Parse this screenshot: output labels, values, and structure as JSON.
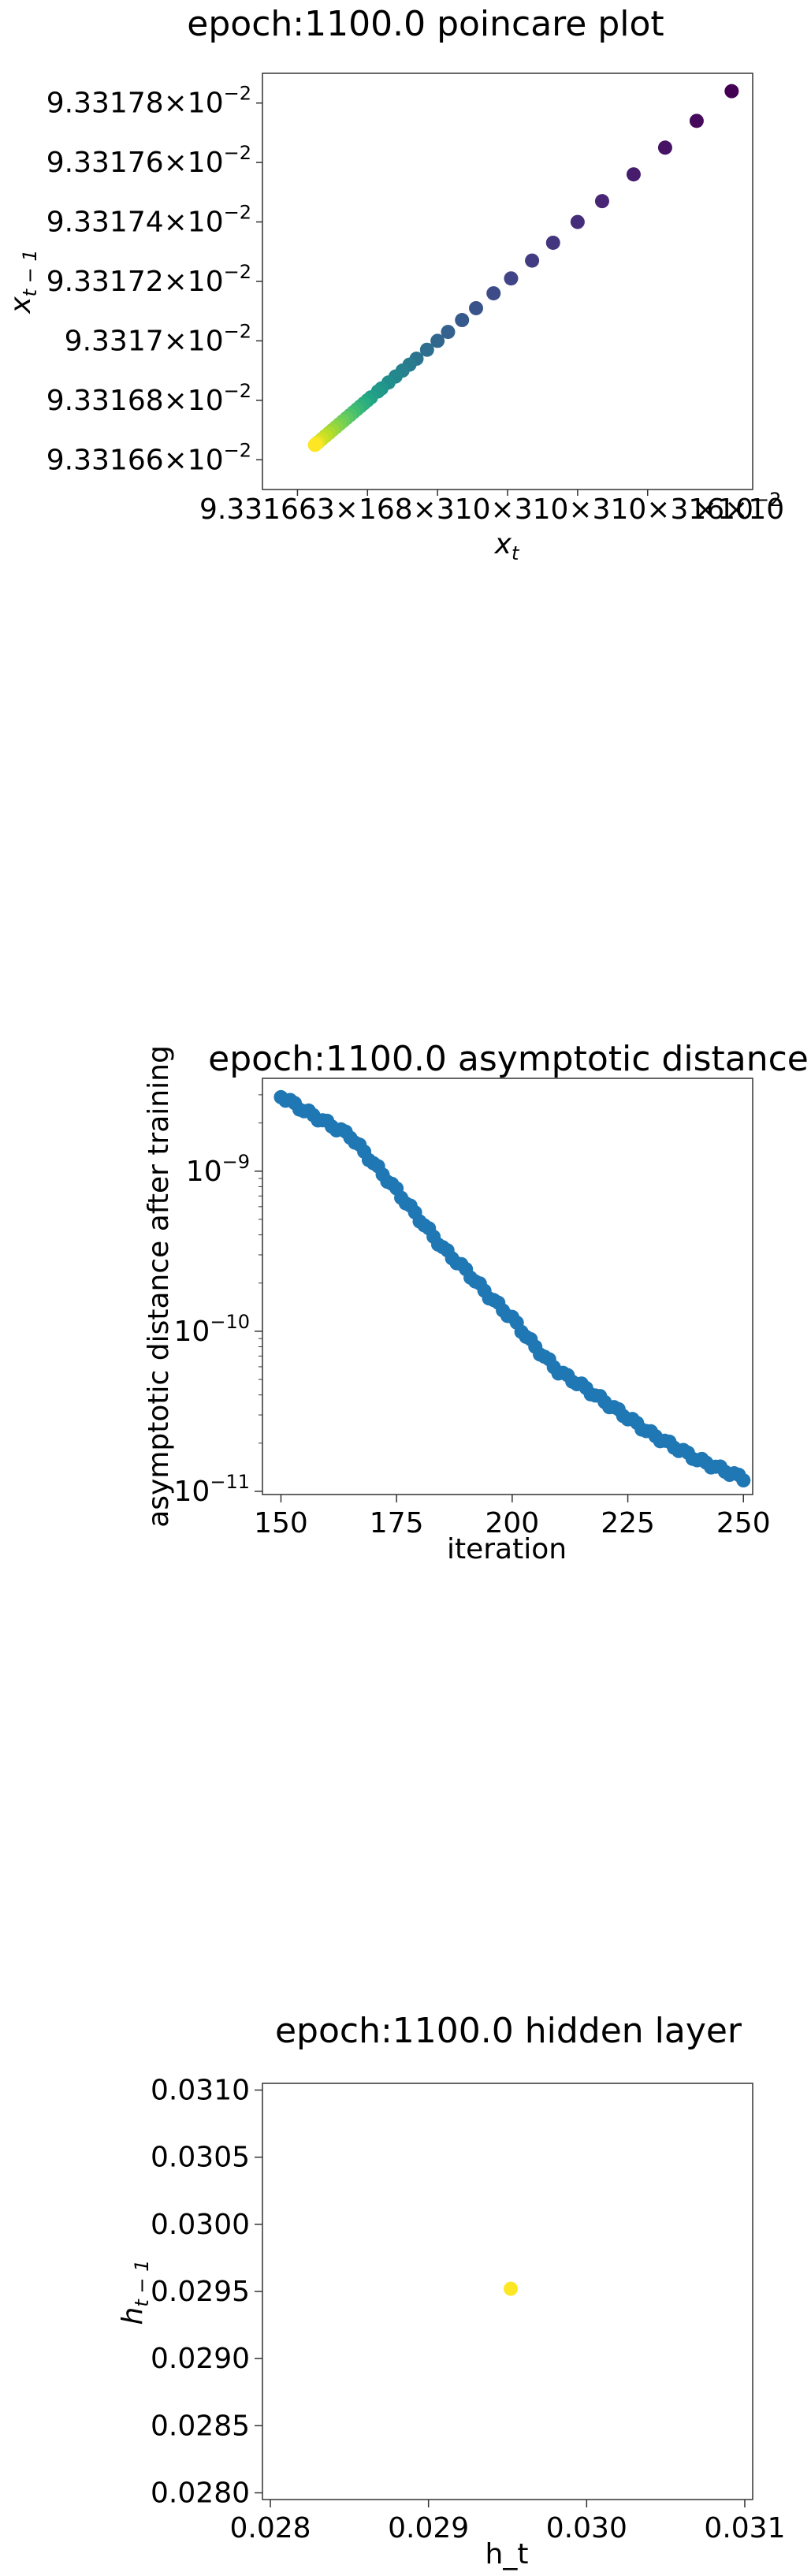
{
  "chart_data": [
    {
      "type": "scatter",
      "title": "epoch:1100.0 poincare plot",
      "xlabel": "x",
      "xlabel_sub": "t",
      "ylabel": "x",
      "ylabel_sub": "t − 1",
      "colormap": "viridis",
      "xlim": [
        0.0933165,
        0.0933179
      ],
      "ylim": [
        0.0933165,
        0.0933179
      ],
      "x_ticks_text": "9.3316 3×10³¹°³² ×10³² ×10⁻²",
      "x_tick_labels": [
        {
          "m": "9.33166",
          "e": "−2",
          "v": 0.0933166
        },
        {
          "m": "9.33168",
          "e": "−2",
          "v": 0.0933168
        },
        {
          "m": "9.3317",
          "e": "−2",
          "v": 0.093317
        },
        {
          "m": "9.33172",
          "e": "−2",
          "v": 0.0933172
        },
        {
          "m": "9.33174",
          "e": "−2",
          "v": 0.0933174
        },
        {
          "m": "9.33176",
          "e": "−2",
          "v": 0.0933176
        }
      ],
      "y_tick_labels": [
        {
          "m": "9.33178",
          "e": "−2",
          "v": 0.0933178
        },
        {
          "m": "9.33176",
          "e": "−2",
          "v": 0.0933176
        },
        {
          "m": "9.33174",
          "e": "−2",
          "v": 0.0933174
        },
        {
          "m": "9.33172",
          "e": "−2",
          "v": 0.0933172
        },
        {
          "m": "9.3317",
          "e": "−2",
          "v": 0.093317
        },
        {
          "m": "9.33168",
          "e": "−2",
          "v": 0.0933168
        },
        {
          "m": "9.33166",
          "e": "−2",
          "v": 0.0933166
        }
      ],
      "x_visible_text": "9.331663×168×310×310×310×316×10",
      "x_last_label": {
        "m": "×10",
        "e": "−2"
      },
      "points_x": [
        0.09331784,
        0.09331774,
        0.09331765,
        0.09331756,
        0.09331747,
        0.0933174,
        0.09331733,
        0.09331727,
        0.09331721,
        0.09331716,
        0.09331711,
        0.09331707,
        0.09331703,
        0.093317,
        0.09331697,
        0.09331694,
        0.09331692,
        0.0933169,
        0.09331688,
        0.09331686,
        0.09331684,
        0.09331683,
        0.09331681,
        0.0933168,
        0.09331679,
        0.09331678,
        0.09331677,
        0.09331676,
        0.09331675,
        0.09331674,
        0.09331673,
        0.09331672,
        0.09331671,
        0.0933167,
        0.09331669,
        0.09331668,
        0.09331667,
        0.09331666,
        0.093316655,
        0.09331665
      ]
    },
    {
      "type": "scatter",
      "title": "epoch:1100.0 asymptotic distance",
      "xlabel": "iteration",
      "ylabel": "asymptotic distance after training",
      "yscale": "log",
      "xlim": [
        146,
        252
      ],
      "ylim_log10": [
        -11.02,
        -8.42
      ],
      "x_ticks": [
        150,
        175,
        200,
        225,
        250
      ],
      "y_ticks": [
        {
          "base": "10",
          "exp": "−9",
          "v": -9
        },
        {
          "base": "10",
          "exp": "−10",
          "v": -10
        },
        {
          "base": "10",
          "exp": "−11",
          "v": -11
        }
      ],
      "color": "#1f77b4",
      "x_start": 150,
      "x_end": 250,
      "log10_y_anchors": [
        [
          150,
          -8.53
        ],
        [
          155,
          -8.62
        ],
        [
          160,
          -8.7
        ],
        [
          165,
          -8.78
        ],
        [
          170,
          -8.95
        ],
        [
          175,
          -9.12
        ],
        [
          180,
          -9.3
        ],
        [
          185,
          -9.48
        ],
        [
          190,
          -9.62
        ],
        [
          195,
          -9.78
        ],
        [
          200,
          -9.92
        ],
        [
          205,
          -10.1
        ],
        [
          210,
          -10.25
        ],
        [
          215,
          -10.34
        ],
        [
          220,
          -10.44
        ],
        [
          225,
          -10.54
        ],
        [
          230,
          -10.64
        ],
        [
          235,
          -10.72
        ],
        [
          240,
          -10.8
        ],
        [
          245,
          -10.86
        ],
        [
          250,
          -10.92
        ]
      ]
    },
    {
      "type": "scatter",
      "title": "epoch:1100.0 hidden layer",
      "xlabel": "h_t",
      "ylabel": "h",
      "ylabel_sub": "t − 1",
      "xlim": [
        0.02795,
        0.03105
      ],
      "ylim": [
        0.02795,
        0.03105
      ],
      "x_ticks": [
        "0.028",
        "0.029",
        "0.030",
        "0.031"
      ],
      "y_ticks": [
        "0.0310",
        "0.0305",
        "0.0300",
        "0.0295",
        "0.0290",
        "0.0285",
        "0.0280"
      ],
      "points": [
        {
          "x": 0.02952,
          "y": 0.02952
        }
      ],
      "color": "#fde725"
    }
  ]
}
